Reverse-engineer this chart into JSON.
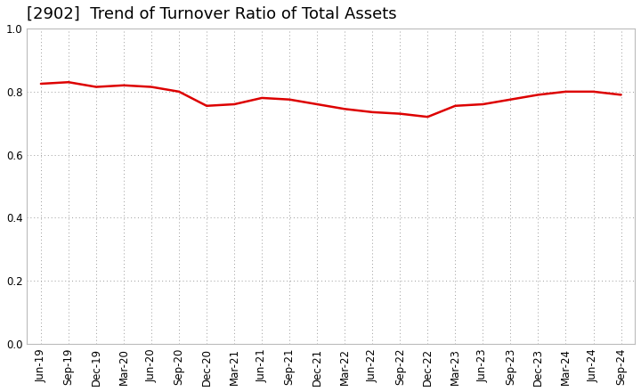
{
  "title": "[2902]  Trend of Turnover Ratio of Total Assets",
  "x_labels": [
    "Jun-19",
    "Sep-19",
    "Dec-19",
    "Mar-20",
    "Jun-20",
    "Sep-20",
    "Dec-20",
    "Mar-21",
    "Jun-21",
    "Sep-21",
    "Dec-21",
    "Mar-22",
    "Jun-22",
    "Sep-22",
    "Dec-22",
    "Mar-23",
    "Jun-23",
    "Sep-23",
    "Dec-23",
    "Mar-24",
    "Jun-24",
    "Sep-24"
  ],
  "y_values": [
    0.825,
    0.83,
    0.815,
    0.82,
    0.815,
    0.8,
    0.755,
    0.76,
    0.78,
    0.775,
    0.76,
    0.745,
    0.735,
    0.73,
    0.72,
    0.755,
    0.76,
    0.775,
    0.79,
    0.8,
    0.8,
    0.79
  ],
  "ylim": [
    0.0,
    1.0
  ],
  "yticks": [
    0.0,
    0.2,
    0.4,
    0.6,
    0.8,
    1.0
  ],
  "line_color": "#dd0000",
  "line_width": 1.8,
  "background_color": "#ffffff",
  "grid_color": "#999999",
  "title_fontsize": 13,
  "tick_fontsize": 8.5
}
